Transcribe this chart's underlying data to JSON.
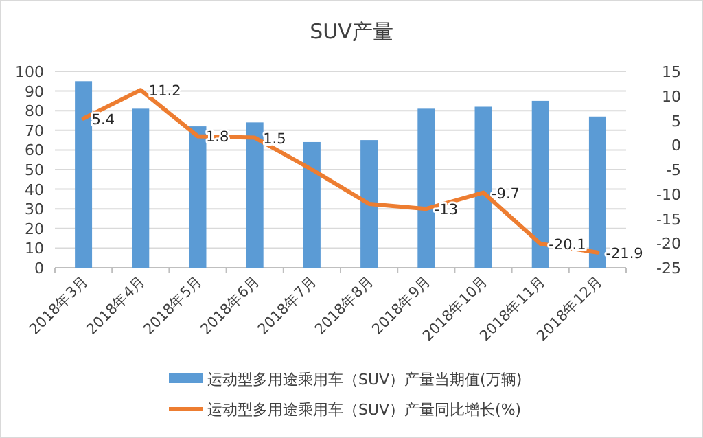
{
  "chart_data": {
    "type": "bar",
    "title": "SUV产量",
    "categories": [
      "2018年3月",
      "2018年4月",
      "2018年5月",
      "2018年6月",
      "2018年7月",
      "2018年8月",
      "2018年9月",
      "2018年10月",
      "2018年11月",
      "2018年12月"
    ],
    "series": [
      {
        "name": "运动型多用途乘用车（SUV）产量当期值(万辆)",
        "color": "#5b9bd5",
        "values": [
          95,
          81,
          72,
          74,
          64,
          65,
          81,
          82,
          85,
          77
        ]
      },
      {
        "name": "运动型多用途乘用车（SUV）产量同比增长(%)",
        "type": "line",
        "axis": "y2",
        "color": "#ed7d31",
        "values": [
          5.4,
          11.2,
          1.8,
          1.5,
          -5,
          -12,
          -13,
          -9.7,
          -20.1,
          -21.9
        ],
        "value_labels": [
          "5.4",
          "11.2",
          "1.8",
          "1.5",
          null,
          null,
          "-13",
          "-9.7",
          "-20.1",
          "-21.9"
        ]
      }
    ],
    "ylim": [
      0,
      100
    ],
    "yticks": [
      0,
      10,
      20,
      30,
      40,
      50,
      60,
      70,
      80,
      90,
      100
    ],
    "y2lim": [
      -25,
      15
    ],
    "y2ticks": [
      -25,
      -20,
      -15,
      -10,
      -5,
      0,
      5,
      10,
      15
    ],
    "grid": "y",
    "legend": "bottom"
  }
}
